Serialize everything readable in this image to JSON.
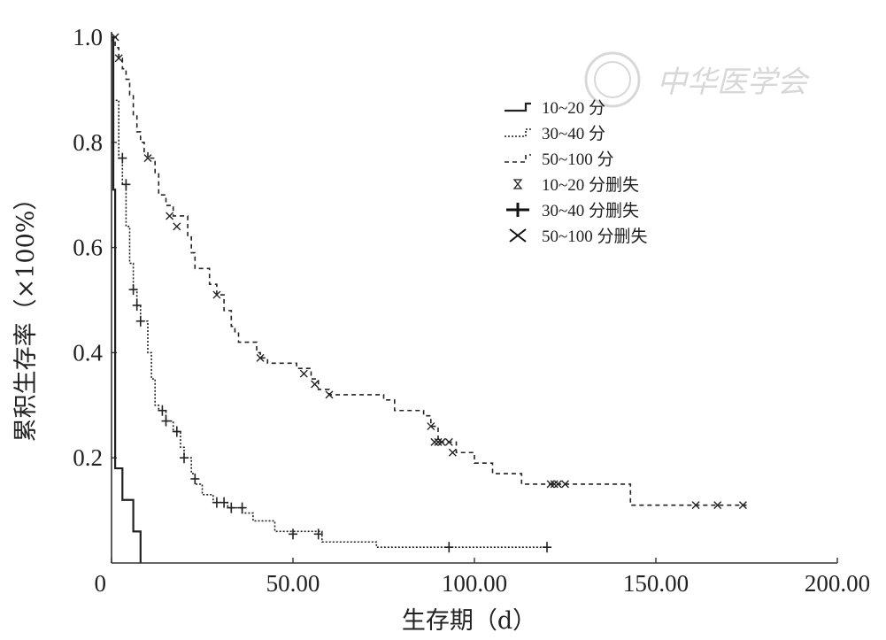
{
  "chart_data": {
    "type": "line",
    "xlabel": "生存期（d）",
    "ylabel": "累积生存率（×100%）",
    "xlim": [
      0,
      200
    ],
    "ylim": [
      0,
      1
    ],
    "x_ticks": [
      0,
      50,
      100,
      150,
      200
    ],
    "x_tick_labels": [
      "0",
      "50.00",
      "100.00",
      "150.00",
      "200.00"
    ],
    "y_ticks": [
      0.2,
      0.4,
      0.6,
      0.8,
      1.0
    ],
    "y_tick_labels": [
      "0.2",
      "0.4",
      "0.6",
      "0.8",
      "1.0"
    ],
    "legend_position": "top-right",
    "series": [
      {
        "name": "10~20 分",
        "censored_name": "10~20 分删失",
        "style": "solid",
        "steps": [
          [
            0,
            1.0
          ],
          [
            0.5,
            0.71
          ],
          [
            1,
            0.18
          ],
          [
            3,
            0.12
          ],
          [
            6,
            0.06
          ],
          [
            8,
            0.0
          ]
        ],
        "censored": []
      },
      {
        "name": "30~40 分",
        "censored_name": "30~40 分删失",
        "style": "dotted",
        "steps": [
          [
            0,
            1.0
          ],
          [
            0.5,
            0.88
          ],
          [
            2,
            0.77
          ],
          [
            3,
            0.72
          ],
          [
            4,
            0.64
          ],
          [
            5,
            0.57
          ],
          [
            6,
            0.52
          ],
          [
            7,
            0.49
          ],
          [
            8,
            0.46
          ],
          [
            10,
            0.4
          ],
          [
            11,
            0.35
          ],
          [
            12,
            0.3
          ],
          [
            13,
            0.29
          ],
          [
            15,
            0.27
          ],
          [
            17,
            0.25
          ],
          [
            19,
            0.22
          ],
          [
            20,
            0.2
          ],
          [
            22,
            0.17
          ],
          [
            23,
            0.15
          ],
          [
            25,
            0.13
          ],
          [
            28,
            0.115
          ],
          [
            32,
            0.105
          ],
          [
            36,
            0.095
          ],
          [
            39,
            0.08
          ],
          [
            45,
            0.06
          ],
          [
            58,
            0.04
          ],
          [
            73,
            0.03
          ],
          [
            120,
            0.03
          ]
        ],
        "censored": [
          [
            3,
            0.77
          ],
          [
            4,
            0.72
          ],
          [
            6,
            0.52
          ],
          [
            7,
            0.49
          ],
          [
            8,
            0.46
          ],
          [
            14,
            0.29
          ],
          [
            15,
            0.27
          ],
          [
            18,
            0.25
          ],
          [
            20,
            0.2
          ],
          [
            23,
            0.16
          ],
          [
            29,
            0.115
          ],
          [
            31,
            0.115
          ],
          [
            33,
            0.105
          ],
          [
            36,
            0.105
          ],
          [
            50,
            0.055
          ],
          [
            57,
            0.055
          ],
          [
            93,
            0.03
          ],
          [
            120,
            0.03
          ]
        ]
      },
      {
        "name": "50~100 分",
        "censored_name": "50~100 分删失",
        "style": "dashed",
        "steps": [
          [
            0,
            1.0
          ],
          [
            1,
            0.98
          ],
          [
            2,
            0.96
          ],
          [
            3,
            0.94
          ],
          [
            4,
            0.92
          ],
          [
            5,
            0.89
          ],
          [
            6,
            0.85
          ],
          [
            7,
            0.82
          ],
          [
            8,
            0.8
          ],
          [
            9,
            0.78
          ],
          [
            10,
            0.77
          ],
          [
            12,
            0.74
          ],
          [
            13,
            0.7
          ],
          [
            15,
            0.68
          ],
          [
            17,
            0.66
          ],
          [
            21,
            0.62
          ],
          [
            22,
            0.59
          ],
          [
            23,
            0.56
          ],
          [
            27,
            0.53
          ],
          [
            29,
            0.51
          ],
          [
            31,
            0.48
          ],
          [
            33,
            0.45
          ],
          [
            34,
            0.44
          ],
          [
            35,
            0.42
          ],
          [
            40,
            0.4
          ],
          [
            41,
            0.39
          ],
          [
            43,
            0.38
          ],
          [
            51,
            0.37
          ],
          [
            55,
            0.35
          ],
          [
            57,
            0.33
          ],
          [
            60,
            0.32
          ],
          [
            75,
            0.31
          ],
          [
            78,
            0.29
          ],
          [
            86,
            0.28
          ],
          [
            88,
            0.26
          ],
          [
            90,
            0.23
          ],
          [
            95,
            0.21
          ],
          [
            100,
            0.19
          ],
          [
            105,
            0.17
          ],
          [
            113,
            0.15
          ],
          [
            143,
            0.11
          ],
          [
            175,
            0.11
          ]
        ],
        "censored": [
          [
            1,
            1.0
          ],
          [
            2,
            0.96
          ],
          [
            10,
            0.77
          ],
          [
            16,
            0.66
          ],
          [
            18,
            0.64
          ],
          [
            29,
            0.51
          ],
          [
            41,
            0.39
          ],
          [
            53,
            0.36
          ],
          [
            56,
            0.34
          ],
          [
            60,
            0.32
          ],
          [
            88,
            0.26
          ],
          [
            89,
            0.23
          ],
          [
            90,
            0.23
          ],
          [
            91,
            0.23
          ],
          [
            93,
            0.23
          ],
          [
            94,
            0.21
          ],
          [
            121,
            0.15
          ],
          [
            122,
            0.15
          ],
          [
            123,
            0.15
          ],
          [
            125,
            0.15
          ],
          [
            161,
            0.11
          ],
          [
            167,
            0.11
          ],
          [
            174,
            0.11
          ]
        ]
      }
    ]
  },
  "watermark": "中华医学会"
}
